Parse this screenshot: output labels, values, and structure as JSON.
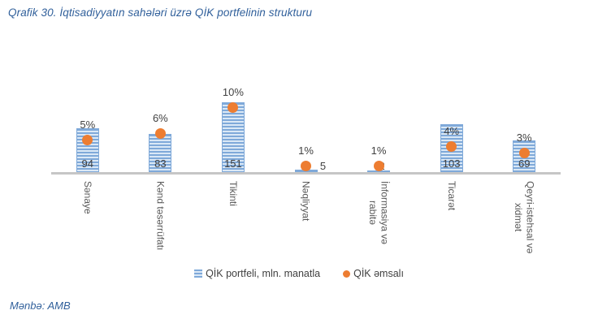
{
  "title": "Qrafik 30. İqtisadiyyatın sahələri üzrə QİK portfelinin strukturu",
  "source_note": "Mənbə: AMB",
  "legend": {
    "bar_series": "QİK portfeli, mln. manatla",
    "dot_series": "QİK əmsalı"
  },
  "colors": {
    "title": "#31609B",
    "bar_stripe_dark": "#7FA9D9",
    "bar_stripe_light": "#DAE8F6",
    "dot": "#ED7D31",
    "axis": "#C6C6C6",
    "data_label": "#404040",
    "axis_label": "#595959"
  },
  "chart_data": {
    "type": "bar",
    "subtype": "column chart with scatter (percentage) overlay on secondary axis",
    "title": "Qrafik 30. İqtisadiyyatın sahələri üzrə QİK portfelinin strukturu",
    "categories": [
      "Sənaye",
      "Kənd təsərrüfatı",
      "Tikinti",
      "Nəqliyyat",
      "İnformasiya və\nrabitə",
      "Ticarət",
      "Qeyri-istehsal və\nxidmət"
    ],
    "series": [
      {
        "name": "QİK portfeli, mln. manatla",
        "type": "bar",
        "values": [
          94,
          83,
          151,
          5,
          2,
          103,
          69
        ]
      },
      {
        "name": "QİK əmsalı",
        "type": "scatter",
        "unit": "%",
        "values": [
          5,
          6,
          10,
          1,
          1,
          4,
          3
        ],
        "labels": [
          "5%",
          "6%",
          "10%",
          "1%",
          "1%",
          "4%",
          "3%"
        ]
      }
    ],
    "legend_position": "bottom",
    "x_tick_rotation": 90,
    "gridlines": false,
    "source": "Mənbə: AMB"
  }
}
